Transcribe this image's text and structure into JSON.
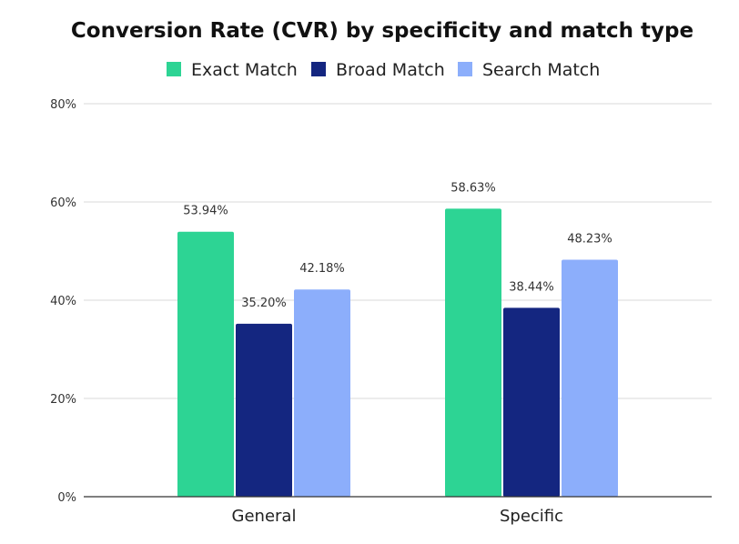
{
  "chart_data": {
    "type": "bar",
    "title": "Conversion Rate (CVR) by specificity and match type",
    "xlabel": "",
    "ylabel": "",
    "categories": [
      "General",
      "Specific"
    ],
    "series": [
      {
        "name": "Exact Match",
        "values": [
          53.94,
          58.63
        ],
        "labels": [
          "53.94%",
          "58.63%"
        ],
        "color": "#2dd494"
      },
      {
        "name": "Broad Match",
        "values": [
          35.2,
          38.44
        ],
        "labels": [
          "35.20%",
          "38.44%"
        ],
        "color": "#142680"
      },
      {
        "name": "Search Match",
        "values": [
          42.18,
          48.23
        ],
        "labels": [
          "42.18%",
          "48.23%"
        ],
        "color": "#8caefb"
      }
    ],
    "ylim": [
      0,
      80
    ],
    "yticks": [
      0,
      20,
      40,
      60,
      80
    ],
    "ytick_labels": [
      "0%",
      "20%",
      "40%",
      "60%",
      "80%"
    ],
    "grid": true,
    "legend_position": "top-center"
  }
}
